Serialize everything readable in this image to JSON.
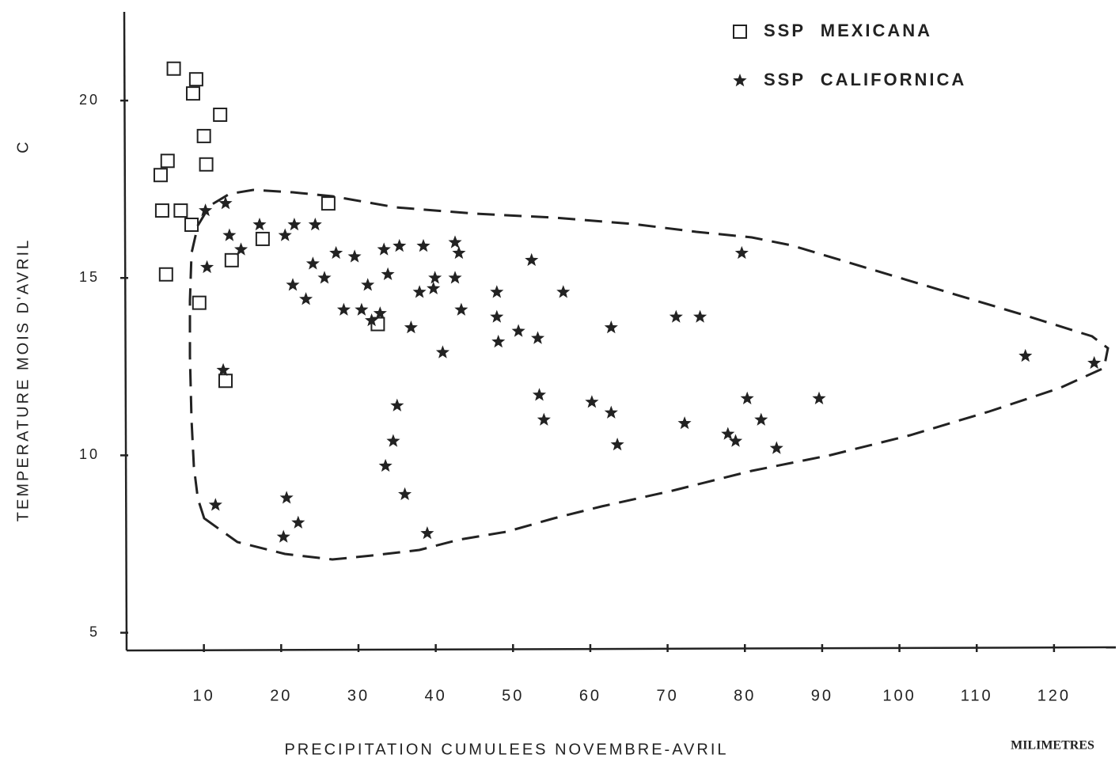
{
  "chart_data": {
    "type": "scatter",
    "ylabel": "TEMPERATURE MOIS D'AVRIL",
    "yunit": "C",
    "xlabel": "PRECIPITATION CUMULEES NOVEMBRE-AVRIL",
    "xunit": "MILIMETRES",
    "xlim": [
      0,
      128
    ],
    "ylim": [
      4.5,
      22.5
    ],
    "xticks": [
      10,
      20,
      30,
      40,
      50,
      60,
      70,
      80,
      90,
      100,
      110,
      120
    ],
    "yticks": [
      5,
      10,
      15,
      20
    ],
    "series": [
      {
        "name": "SSP MEXICANA",
        "color": "#222222",
        "marker": "square",
        "x": [
          6.1,
          9.0,
          8.6,
          5.3,
          4.4,
          4.6,
          7.0,
          8.4,
          5.1,
          9.4,
          13.6,
          17.6,
          26.1,
          32.5,
          12.1,
          10.0,
          10.3,
          12.8
        ],
        "y": [
          20.9,
          20.6,
          20.2,
          18.3,
          17.9,
          16.9,
          16.9,
          16.5,
          15.1,
          14.3,
          15.5,
          16.1,
          17.1,
          13.7,
          19.6,
          19.0,
          18.2,
          12.1
        ]
      },
      {
        "name": "SSP CALIFORNICA",
        "color": "#222222",
        "marker": "star",
        "x": [
          12.8,
          10.2,
          13.3,
          14.8,
          17.2,
          20.5,
          21.7,
          24.4,
          21.5,
          23.2,
          24.1,
          25.6,
          27.1,
          29.5,
          31.2,
          28.1,
          30.4,
          33.3,
          35.3,
          33.8,
          32.8,
          31.7,
          38.4,
          42.5,
          43.0,
          42.5,
          39.9,
          37.9,
          36.8,
          43.3,
          40.9,
          47.9,
          47.9,
          48.1,
          50.7,
          53.2,
          52.4,
          56.5,
          53.4,
          54.0,
          60.2,
          62.7,
          62.7,
          63.5,
          71.1,
          74.2,
          72.2,
          77.8,
          78.8,
          80.3,
          82.1,
          84.1,
          89.6,
          79.6,
          116.3,
          125.2,
          35.0,
          34.5,
          33.5,
          36.0,
          38.9,
          20.7,
          22.2,
          20.3,
          11.5,
          12.5,
          10.4,
          39.7
        ],
        "y": [
          17.1,
          16.9,
          16.2,
          15.8,
          16.5,
          16.2,
          16.5,
          16.5,
          14.8,
          14.4,
          15.4,
          15.0,
          15.7,
          15.6,
          14.8,
          14.1,
          14.1,
          15.8,
          15.9,
          15.1,
          14.0,
          13.8,
          15.9,
          16.0,
          15.7,
          15.0,
          15.0,
          14.6,
          13.6,
          14.1,
          12.9,
          14.6,
          13.9,
          13.2,
          13.5,
          13.3,
          15.5,
          14.6,
          11.7,
          11.0,
          11.5,
          13.6,
          11.2,
          10.3,
          13.9,
          13.9,
          10.9,
          10.6,
          10.4,
          11.6,
          11.0,
          10.2,
          11.6,
          15.7,
          12.8,
          12.6,
          11.4,
          10.4,
          9.7,
          8.9,
          7.8,
          8.8,
          8.1,
          7.7,
          8.6,
          12.4,
          15.3,
          14.7
        ]
      }
    ]
  }
}
